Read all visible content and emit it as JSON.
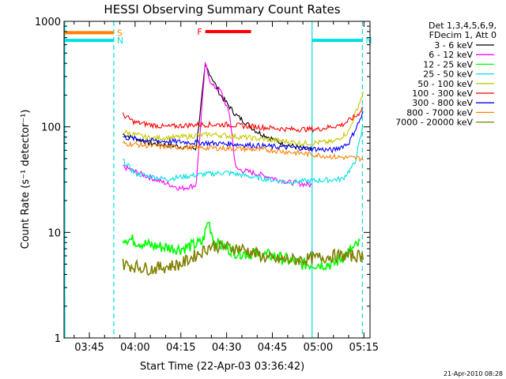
{
  "chart_data": {
    "type": "line",
    "title": "HESSI Observing Summary Count Rates",
    "xlabel": "Start Time (22-Apr-03 03:36:42)",
    "ylabel": "Count Rate (s⁻¹ detector⁻¹)",
    "y_scale": "log",
    "ylim": [
      1,
      1000
    ],
    "xlim": [
      "03:36:42",
      "05:17:00"
    ],
    "x_ticks": [
      "03:45",
      "04:00",
      "04:15",
      "04:30",
      "04:45",
      "05:00",
      "05:15"
    ],
    "y_ticks": [
      "1",
      "10",
      "100",
      "1000"
    ],
    "legend_header": [
      "Det 1,3,4,5,6,9,",
      "FDecim 1, Att 0"
    ],
    "legend_position": "right",
    "flags": [
      {
        "label": "S",
        "color": "#ff8000",
        "level": 780,
        "start": "03:36:42",
        "end": "03:53:00"
      },
      {
        "label": "N",
        "color": "#00e0e0",
        "level": 660,
        "start": "03:36:42",
        "end": "03:53:00"
      },
      {
        "label": "N",
        "color": "#00e0e0",
        "level": 660,
        "start": "04:58:00",
        "end": "05:14:30"
      },
      {
        "label": "F",
        "color": "#ff0000",
        "level": 800,
        "start": "04:23:00",
        "end": "04:38:00"
      }
    ],
    "gaps": {
      "color": "#00e0e0",
      "markers": [
        {
          "time": "03:53:00",
          "style": "dashed"
        },
        {
          "time": "04:58:00",
          "style": "solid"
        },
        {
          "time": "05:14:30",
          "style": "dashed"
        }
      ]
    },
    "series": [
      {
        "name": "3 - 6 keV",
        "color": "#000000",
        "x": [
          "03:56",
          "04:05",
          "04:15",
          "04:20",
          "04:23",
          "04:25",
          "04:28",
          "04:33",
          "04:40",
          "04:48",
          "04:55",
          "04:58"
        ],
        "values": [
          85,
          70,
          65,
          62,
          380,
          300,
          200,
          130,
          90,
          70,
          62,
          60
        ]
      },
      {
        "name": "6 - 12 keV",
        "color": "#ff00ff",
        "x": [
          "03:56",
          "04:05",
          "04:15",
          "04:20",
          "04:23",
          "04:25",
          "04:28",
          "04:31",
          "04:33",
          "04:40",
          "04:50",
          "04:58"
        ],
        "values": [
          42,
          33,
          26,
          28,
          400,
          250,
          220,
          130,
          40,
          36,
          30,
          28
        ]
      },
      {
        "name": "12 - 25 keV",
        "color": "#00ff00",
        "x": [
          "03:56",
          "04:05",
          "04:15",
          "04:22",
          "04:24",
          "04:26",
          "04:33",
          "04:45",
          "04:55",
          "05:05",
          "05:14"
        ],
        "values": [
          9,
          7.5,
          7,
          8,
          13,
          8,
          6.5,
          6,
          5,
          5,
          8
        ]
      },
      {
        "name": "25 - 50 keV",
        "color": "#00e0e0",
        "x": [
          "03:56",
          "04:00",
          "04:10",
          "04:20",
          "04:30",
          "04:40",
          "04:50",
          "05:00",
          "05:08",
          "05:12",
          "05:15"
        ],
        "values": [
          48,
          36,
          32,
          35,
          37,
          33,
          30,
          31,
          32,
          45,
          110
        ]
      },
      {
        "name": "50 - 100 keV",
        "color": "#c8c800",
        "x": [
          "03:56",
          "04:05",
          "04:15",
          "04:25",
          "04:35",
          "04:45",
          "04:55",
          "05:05",
          "05:10",
          "05:15"
        ],
        "values": [
          90,
          78,
          80,
          85,
          80,
          75,
          70,
          72,
          90,
          220
        ]
      },
      {
        "name": "100 - 300 keV",
        "color": "#ff0000",
        "x": [
          "03:56",
          "04:00",
          "04:10",
          "04:20",
          "04:30",
          "04:40",
          "04:50",
          "05:00",
          "05:08",
          "05:13",
          "05:15"
        ],
        "values": [
          130,
          110,
          100,
          105,
          105,
          100,
          95,
          95,
          105,
          130,
          160
        ]
      },
      {
        "name": "300 - 800 keV",
        "color": "#0000ff",
        "x": [
          "03:56",
          "04:05",
          "04:15",
          "04:25",
          "04:35",
          "04:45",
          "04:55",
          "05:05",
          "05:10",
          "05:15"
        ],
        "values": [
          80,
          74,
          72,
          70,
          68,
          65,
          63,
          60,
          70,
          140
        ]
      },
      {
        "name": "800 - 7000 keV",
        "color": "#ff8000",
        "x": [
          "03:56",
          "04:05",
          "04:15",
          "04:25",
          "04:35",
          "04:45",
          "04:55",
          "05:05",
          "05:15"
        ],
        "values": [
          70,
          66,
          64,
          63,
          62,
          60,
          56,
          52,
          50
        ]
      },
      {
        "name": "7000 - 20000 keV",
        "color": "#808000",
        "x": [
          "03:56",
          "04:05",
          "04:15",
          "04:25",
          "04:35",
          "04:45",
          "04:55",
          "05:05",
          "05:15"
        ],
        "values": [
          5,
          4.5,
          5,
          7.5,
          7,
          5.5,
          5.5,
          6,
          6
        ]
      }
    ]
  },
  "footer": {
    "timestamp": "21-Apr-2010 08:28"
  }
}
